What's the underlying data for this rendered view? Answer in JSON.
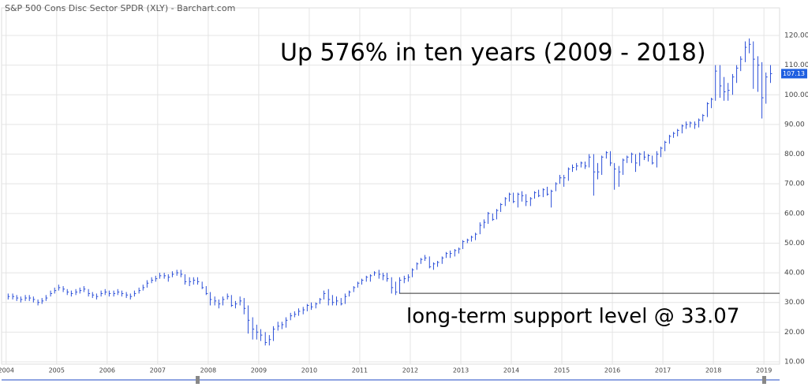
{
  "chart_data": {
    "type": "ohlc",
    "title": "S&P 500 Cons Disc Sector SPDR (XLY) - Barchart.com",
    "annotations": [
      "Up 576% in ten years (2009 - 2018)",
      "long-term support level @ 33.07"
    ],
    "support_level": 33.07,
    "support_start": 2011.78,
    "last_price": {
      "value": 107.13,
      "label": "107.13"
    },
    "color": "#2b4fd8",
    "grid": true,
    "xlim": [
      2003.91,
      2019.31
    ],
    "ylim": [
      9.2,
      129.3
    ],
    "xticks": [
      2004,
      2005,
      2006,
      2007,
      2008,
      2009,
      2010,
      2011,
      2012,
      2013,
      2014,
      2015,
      2016,
      2017,
      2018,
      2019
    ],
    "yticks": [
      {
        "value": 10,
        "label": "10.00"
      },
      {
        "value": 20,
        "label": "20.00"
      },
      {
        "value": 30,
        "label": "30.00"
      },
      {
        "value": 40,
        "label": "40.00"
      },
      {
        "value": 50,
        "label": "50.00"
      },
      {
        "value": 60,
        "label": "60.00"
      },
      {
        "value": 70,
        "label": "70.00"
      },
      {
        "value": 80,
        "label": "80.00"
      },
      {
        "value": 90,
        "label": "90.00"
      },
      {
        "value": 100,
        "label": "100.00"
      },
      {
        "value": 110,
        "label": "110.00"
      },
      {
        "value": 120,
        "label": "120.00"
      }
    ],
    "x": [
      2004.04,
      2004.13,
      2004.21,
      2004.29,
      2004.38,
      2004.46,
      2004.54,
      2004.63,
      2004.71,
      2004.79,
      2004.88,
      2004.96,
      2005.04,
      2005.13,
      2005.21,
      2005.29,
      2005.38,
      2005.46,
      2005.54,
      2005.63,
      2005.71,
      2005.79,
      2005.88,
      2005.96,
      2006.04,
      2006.13,
      2006.21,
      2006.29,
      2006.38,
      2006.46,
      2006.54,
      2006.63,
      2006.71,
      2006.79,
      2006.88,
      2006.96,
      2007.04,
      2007.13,
      2007.21,
      2007.29,
      2007.38,
      2007.46,
      2007.54,
      2007.63,
      2007.71,
      2007.79,
      2007.88,
      2007.96,
      2008.04,
      2008.13,
      2008.21,
      2008.29,
      2008.38,
      2008.46,
      2008.54,
      2008.63,
      2008.71,
      2008.79,
      2008.88,
      2008.96,
      2009.04,
      2009.13,
      2009.21,
      2009.29,
      2009.38,
      2009.46,
      2009.54,
      2009.63,
      2009.71,
      2009.79,
      2009.88,
      2009.96,
      2010.04,
      2010.13,
      2010.21,
      2010.29,
      2010.38,
      2010.46,
      2010.54,
      2010.63,
      2010.71,
      2010.79,
      2010.88,
      2010.96,
      2011.04,
      2011.13,
      2011.21,
      2011.29,
      2011.38,
      2011.46,
      2011.54,
      2011.63,
      2011.71,
      2011.79,
      2011.88,
      2011.96,
      2012.04,
      2012.13,
      2012.21,
      2012.29,
      2012.38,
      2012.46,
      2012.54,
      2012.63,
      2012.71,
      2012.79,
      2012.88,
      2012.96,
      2013.04,
      2013.13,
      2013.21,
      2013.29,
      2013.38,
      2013.46,
      2013.54,
      2013.63,
      2013.71,
      2013.79,
      2013.88,
      2013.96,
      2014.04,
      2014.13,
      2014.21,
      2014.29,
      2014.38,
      2014.46,
      2014.54,
      2014.63,
      2014.71,
      2014.79,
      2014.88,
      2014.96,
      2015.04,
      2015.13,
      2015.21,
      2015.29,
      2015.38,
      2015.46,
      2015.54,
      2015.63,
      2015.71,
      2015.79,
      2015.88,
      2015.96,
      2016.04,
      2016.13,
      2016.21,
      2016.29,
      2016.38,
      2016.46,
      2016.54,
      2016.63,
      2016.71,
      2016.79,
      2016.88,
      2016.96,
      2017.04,
      2017.13,
      2017.21,
      2017.29,
      2017.38,
      2017.46,
      2017.54,
      2017.63,
      2017.71,
      2017.79,
      2017.88,
      2017.96,
      2018.04,
      2018.13,
      2018.21,
      2018.29,
      2018.38,
      2018.46,
      2018.54,
      2018.63,
      2018.71,
      2018.79,
      2018.88,
      2018.96,
      2019.04,
      2019.13
    ],
    "high": [
      33,
      33,
      32.5,
      32,
      32.5,
      32.5,
      32,
      31,
      31.5,
      32.5,
      34,
      35,
      36,
      35.5,
      34.5,
      34,
      34.5,
      35,
      35.5,
      34.5,
      33.5,
      33,
      34,
      34.5,
      34,
      34,
      34.5,
      34,
      33.5,
      33,
      34,
      35,
      36,
      37.5,
      38.5,
      39,
      40,
      40,
      39.5,
      40.5,
      41,
      41,
      39.5,
      38.5,
      38.5,
      38.5,
      37,
      35.5,
      33.5,
      32,
      31,
      32,
      33,
      32.5,
      30.5,
      32,
      31.5,
      29,
      25,
      22.5,
      21,
      20,
      19,
      22,
      23.5,
      23.5,
      25,
      26.5,
      27,
      28,
      28.5,
      29.5,
      30,
      30,
      31.5,
      34,
      34.5,
      32.5,
      32,
      31.5,
      33,
      34,
      35.5,
      37,
      38,
      39,
      39.5,
      40.5,
      41,
      40,
      40,
      38.5,
      37,
      38.5,
      39,
      39.5,
      41.5,
      43.5,
      45,
      46,
      45.5,
      43.5,
      44,
      45.5,
      47,
      47.5,
      48,
      48.5,
      51,
      51.5,
      52.5,
      53.5,
      57,
      58,
      60.5,
      60,
      61.5,
      63.5,
      65.5,
      67,
      67,
      67,
      67.5,
      66.5,
      65.5,
      67.5,
      68,
      68.5,
      69,
      68,
      70.5,
      73,
      73,
      75.5,
      76.5,
      77,
      77.5,
      77.5,
      80,
      80,
      77,
      79.5,
      81,
      81,
      77,
      76,
      78.5,
      79.5,
      80.5,
      80,
      80.5,
      81,
      80,
      79.5,
      81,
      82.5,
      84.5,
      86.5,
      87.5,
      88.5,
      90,
      91,
      91,
      91,
      92,
      93.5,
      97.5,
      99,
      110,
      110,
      106,
      104,
      107,
      110,
      113,
      118,
      119,
      118,
      113,
      111,
      107.5,
      110
    ],
    "low": [
      31,
      31,
      30.5,
      30,
      30.5,
      30.5,
      30,
      29,
      29.5,
      30.5,
      32,
      33,
      34,
      33.5,
      32.5,
      32,
      32.5,
      33,
      33.5,
      32,
      31.5,
      31,
      32,
      32.5,
      32,
      32,
      32.5,
      32,
      31.5,
      31,
      32,
      33,
      34,
      35,
      36.5,
      37,
      38,
      38,
      37,
      38.5,
      39,
      38.5,
      36,
      35.5,
      36,
      36,
      34.5,
      32.5,
      29,
      29,
      28,
      29,
      31,
      28.5,
      28,
      29,
      26,
      19.5,
      17.5,
      17.5,
      17,
      15.5,
      15.5,
      17,
      20.5,
      21,
      21.5,
      24,
      25,
      25.5,
      26,
      27,
      27.5,
      28,
      29.5,
      31,
      29,
      29,
      29,
      29,
      29.5,
      32,
      33.5,
      35,
      36,
      37,
      37,
      39,
      38,
      37.5,
      37,
      33,
      32.5,
      33,
      36.5,
      37,
      38.5,
      41,
      43,
      44,
      41.5,
      41,
      42,
      43,
      45,
      45,
      45.5,
      46.5,
      48,
      50,
      50.5,
      51,
      53,
      55,
      56.5,
      57.5,
      58,
      60.5,
      62.5,
      64,
      63.5,
      62,
      64,
      62.5,
      62.5,
      65,
      65.5,
      65.5,
      66,
      62,
      67.5,
      70,
      69,
      71,
      74,
      74.5,
      75.5,
      75,
      75.5,
      66,
      71.5,
      73,
      78.5,
      76,
      68,
      69,
      73,
      77,
      77,
      74,
      76,
      78,
      77.5,
      76.5,
      75.5,
      79,
      81,
      83.5,
      85.5,
      86,
      87,
      88.5,
      89,
      88.5,
      89,
      91,
      92.5,
      95.5,
      98,
      99,
      98,
      98,
      100,
      104,
      108,
      111,
      114,
      102,
      101,
      92,
      97,
      104
    ],
    "close": [
      32,
      32,
      31.5,
      31,
      31.5,
      31.5,
      31,
      30,
      30.5,
      31.5,
      33,
      34,
      35,
      34.5,
      33.5,
      33,
      33.5,
      34,
      34.5,
      33,
      32.5,
      32,
      33,
      33.5,
      33,
      33,
      33.5,
      33,
      32.5,
      32,
      33,
      34,
      35,
      36.5,
      37.5,
      38,
      39,
      39,
      38.5,
      39.5,
      40,
      39.5,
      37,
      37,
      37.5,
      37,
      35,
      33,
      31,
      30.5,
      29.5,
      31,
      32,
      29,
      29.5,
      30.5,
      28,
      24,
      21,
      20,
      19,
      16.5,
      17.5,
      21,
      22,
      22.5,
      24,
      25.5,
      26,
      27,
      27.5,
      29,
      28.5,
      29.5,
      31,
      33,
      31,
      30,
      30.5,
      29.5,
      32,
      33.5,
      35,
      36.5,
      37.5,
      38.5,
      39,
      40,
      39.5,
      39,
      38,
      35,
      33.5,
      37.5,
      38,
      38.5,
      41,
      43,
      44.5,
      45,
      42,
      43,
      43.5,
      45,
      46.5,
      46.5,
      47.5,
      48,
      50.5,
      51,
      52,
      53,
      56,
      57,
      60,
      58,
      61,
      63,
      65,
      66.5,
      64,
      66.5,
      66,
      64,
      65,
      67,
      66,
      68,
      66.5,
      67.5,
      70,
      72,
      72,
      75,
      75.5,
      76,
      77,
      76,
      79,
      74,
      74,
      79,
      80.5,
      77,
      75,
      74,
      78,
      79,
      80,
      77,
      80,
      79,
      79.5,
      77,
      80,
      82,
      84,
      86,
      87,
      88,
      89.5,
      90,
      90.5,
      90,
      91.5,
      93,
      97,
      98.5,
      108,
      103,
      101,
      101.5,
      106,
      109,
      112,
      116,
      117,
      112,
      110,
      99,
      106,
      107.13
    ]
  }
}
